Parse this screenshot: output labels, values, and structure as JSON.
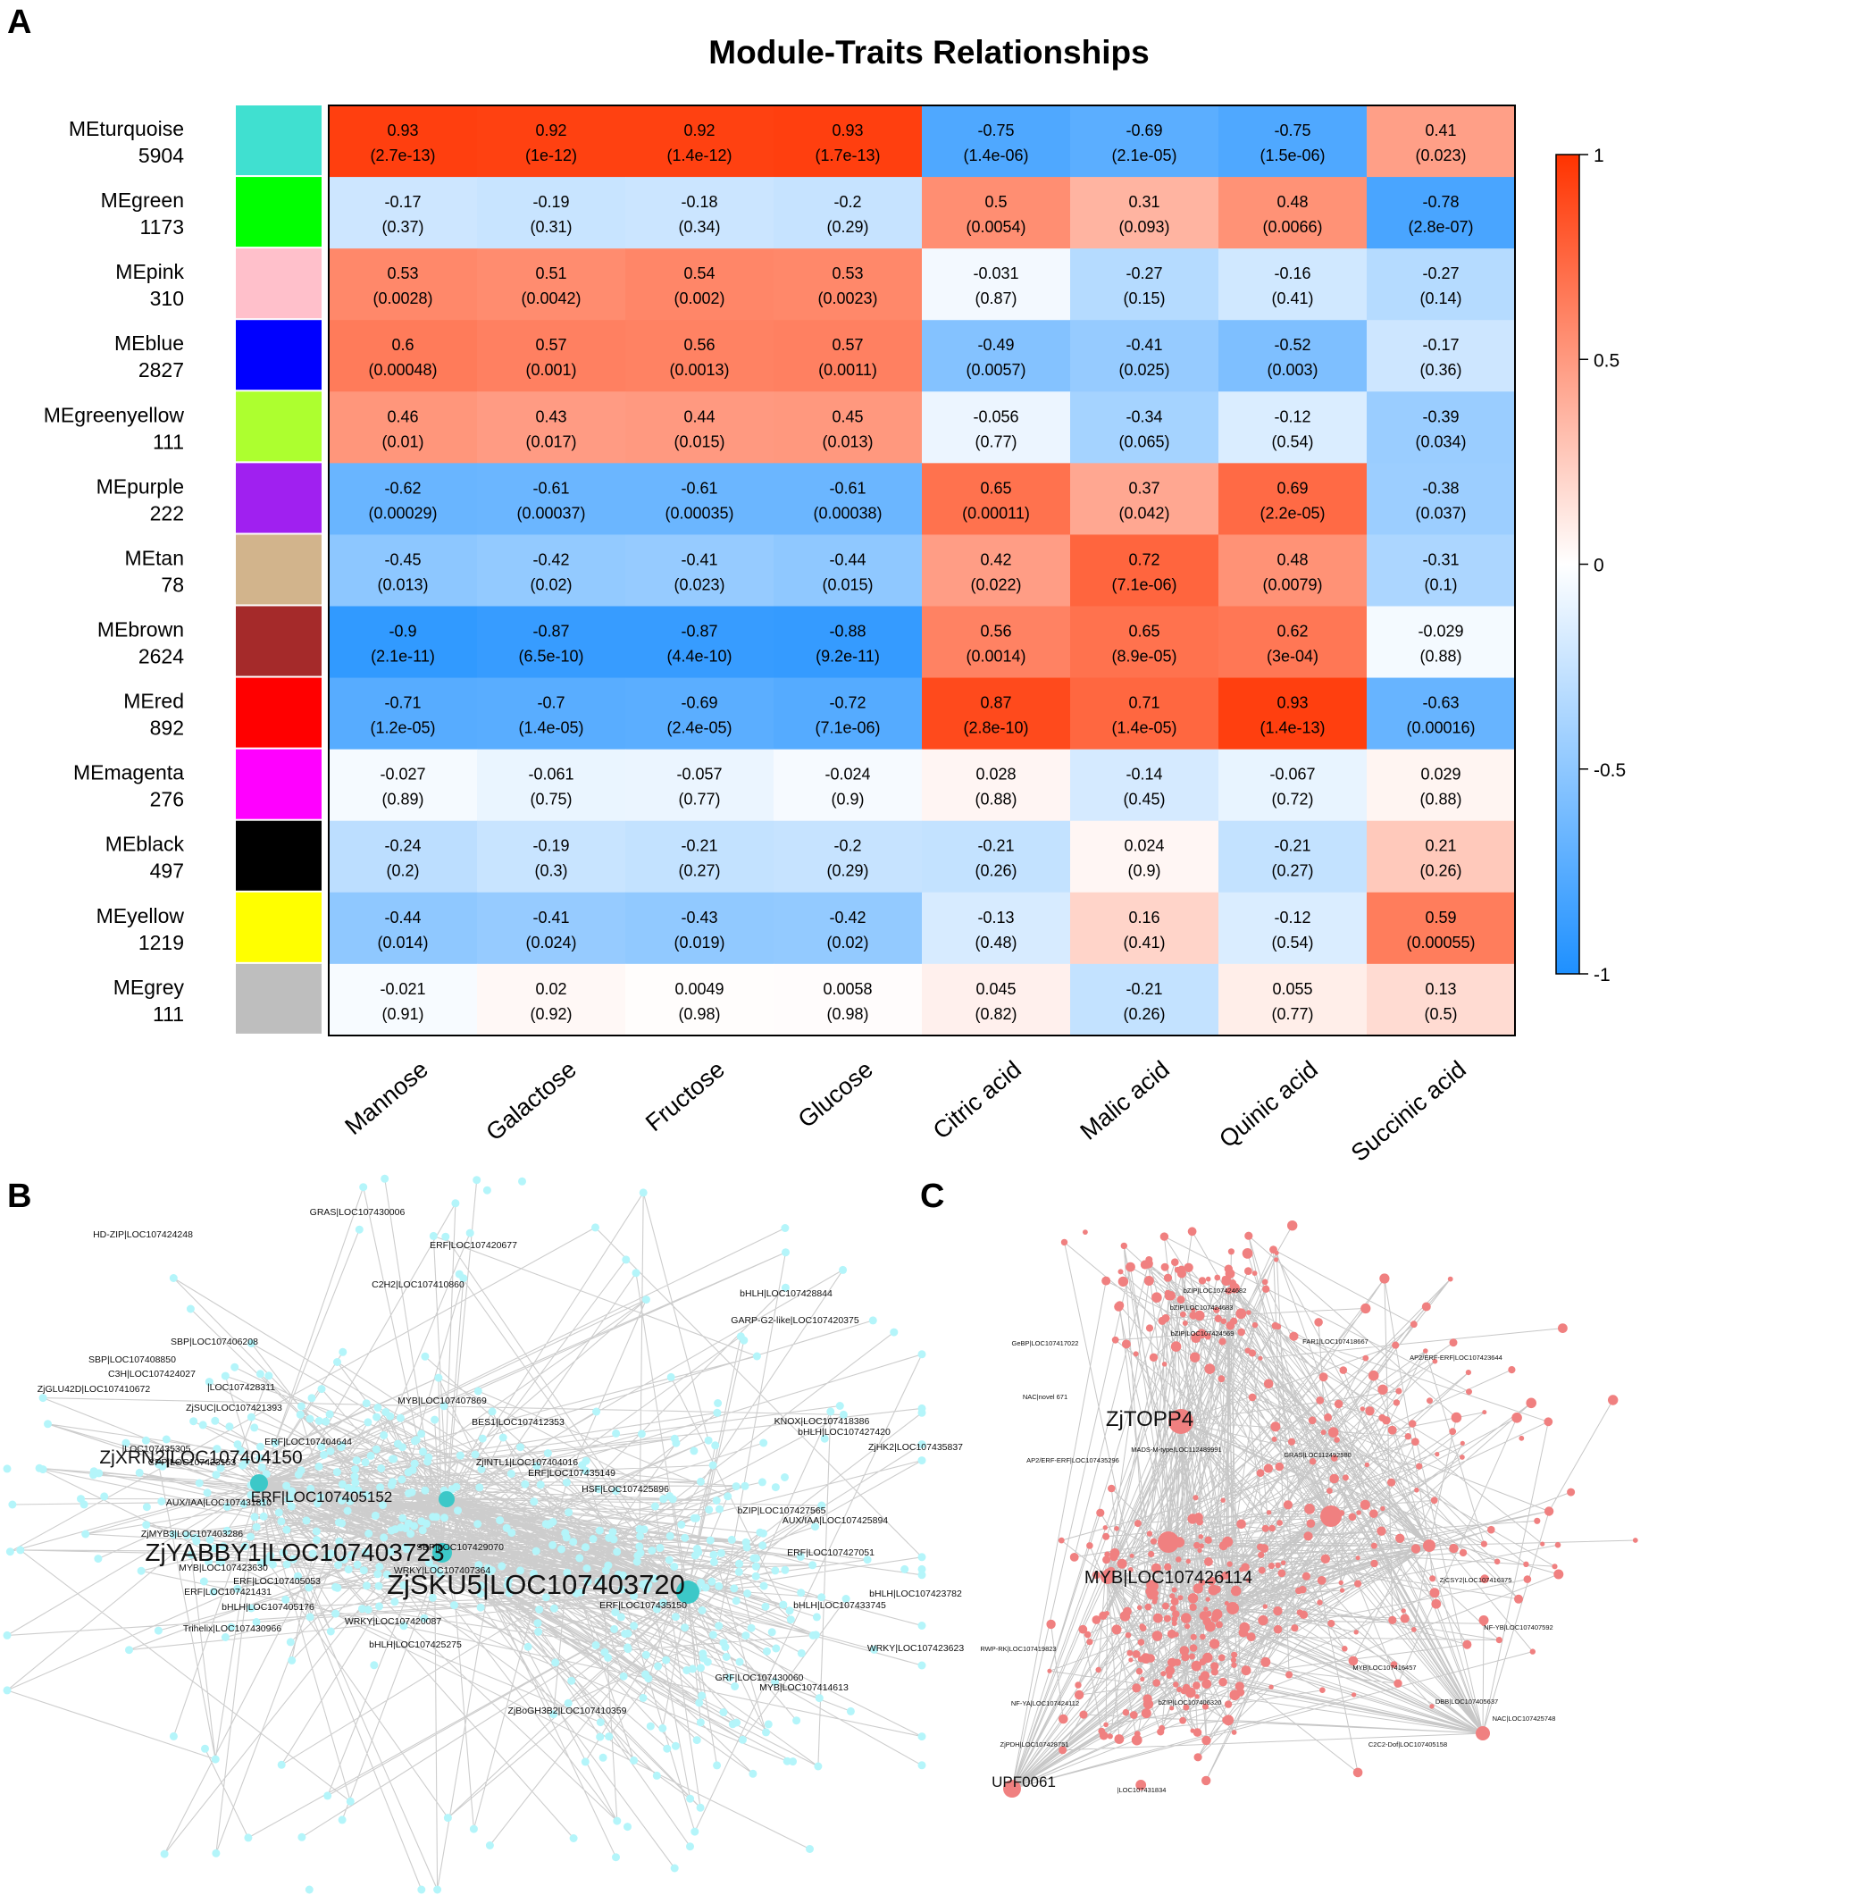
{
  "panels": {
    "a": "A",
    "b": "B",
    "c": "C"
  },
  "chart_data": {
    "type": "heatmap",
    "title": "Module-Traits Relationships",
    "columns": [
      "Mannose",
      "Galactose",
      "Fructose",
      "Glucose",
      "Citric acid",
      "Malic acid",
      "Quinic acid",
      "Succinic acid"
    ],
    "rows": [
      {
        "name": "MEturquoise",
        "count": "5904",
        "color": "#40E0D0",
        "r": [
          "0.93",
          "0.92",
          "0.92",
          "0.93",
          "-0.75",
          "-0.69",
          "-0.75",
          "0.41"
        ],
        "p": [
          "(2.7e-13)",
          "(1e-12)",
          "(1.4e-12)",
          "(1.7e-13)",
          "(1.4e-06)",
          "(2.1e-05)",
          "(1.5e-06)",
          "(0.023)"
        ]
      },
      {
        "name": "MEgreen",
        "count": "1173",
        "color": "#00FF00",
        "r": [
          "-0.17",
          "-0.19",
          "-0.18",
          "-0.2",
          "0.5",
          "0.31",
          "0.48",
          "-0.78"
        ],
        "p": [
          "(0.37)",
          "(0.31)",
          "(0.34)",
          "(0.29)",
          "(0.0054)",
          "(0.093)",
          "(0.0066)",
          "(2.8e-07)"
        ]
      },
      {
        "name": "MEpink",
        "count": "310",
        "color": "#FFC0CB",
        "r": [
          "0.53",
          "0.51",
          "0.54",
          "0.53",
          "-0.031",
          "-0.27",
          "-0.16",
          "-0.27"
        ],
        "p": [
          "(0.0028)",
          "(0.0042)",
          "(0.002)",
          "(0.0023)",
          "(0.87)",
          "(0.15)",
          "(0.41)",
          "(0.14)"
        ]
      },
      {
        "name": "MEblue",
        "count": "2827",
        "color": "#0000FF",
        "r": [
          "0.6",
          "0.57",
          "0.56",
          "0.57",
          "-0.49",
          "-0.41",
          "-0.52",
          "-0.17"
        ],
        "p": [
          "(0.00048)",
          "(0.001)",
          "(0.0013)",
          "(0.0011)",
          "(0.0057)",
          "(0.025)",
          "(0.003)",
          "(0.36)"
        ]
      },
      {
        "name": "MEgreenyellow",
        "count": "111",
        "color": "#ADFF2F",
        "r": [
          "0.46",
          "0.43",
          "0.44",
          "0.45",
          "-0.056",
          "-0.34",
          "-0.12",
          "-0.39"
        ],
        "p": [
          "(0.01)",
          "(0.017)",
          "(0.015)",
          "(0.013)",
          "(0.77)",
          "(0.065)",
          "(0.54)",
          "(0.034)"
        ]
      },
      {
        "name": "MEpurple",
        "count": "222",
        "color": "#A020F0",
        "r": [
          "-0.62",
          "-0.61",
          "-0.61",
          "-0.61",
          "0.65",
          "0.37",
          "0.69",
          "-0.38"
        ],
        "p": [
          "(0.00029)",
          "(0.00037)",
          "(0.00035)",
          "(0.00038)",
          "(0.00011)",
          "(0.042)",
          "(2.2e-05)",
          "(0.037)"
        ]
      },
      {
        "name": "MEtan",
        "count": "78",
        "color": "#D2B48C",
        "r": [
          "-0.45",
          "-0.42",
          "-0.41",
          "-0.44",
          "0.42",
          "0.72",
          "0.48",
          "-0.31"
        ],
        "p": [
          "(0.013)",
          "(0.02)",
          "(0.023)",
          "(0.015)",
          "(0.022)",
          "(7.1e-06)",
          "(0.0079)",
          "(0.1)"
        ]
      },
      {
        "name": "MEbrown",
        "count": "2624",
        "color": "#A52A2A",
        "r": [
          "-0.9",
          "-0.87",
          "-0.87",
          "-0.88",
          "0.56",
          "0.65",
          "0.62",
          "-0.029"
        ],
        "p": [
          "(2.1e-11)",
          "(6.5e-10)",
          "(4.4e-10)",
          "(9.2e-11)",
          "(0.0014)",
          "(8.9e-05)",
          "(3e-04)",
          "(0.88)"
        ]
      },
      {
        "name": "MEred",
        "count": "892",
        "color": "#FF0000",
        "r": [
          "-0.71",
          "-0.7",
          "-0.69",
          "-0.72",
          "0.87",
          "0.71",
          "0.93",
          "-0.63"
        ],
        "p": [
          "(1.2e-05)",
          "(1.4e-05)",
          "(2.4e-05)",
          "(7.1e-06)",
          "(2.8e-10)",
          "(1.4e-05)",
          "(1.4e-13)",
          "(0.00016)"
        ]
      },
      {
        "name": "MEmagenta",
        "count": "276",
        "color": "#FF00FF",
        "r": [
          "-0.027",
          "-0.061",
          "-0.057",
          "-0.024",
          "0.028",
          "-0.14",
          "-0.067",
          "0.029"
        ],
        "p": [
          "(0.89)",
          "(0.75)",
          "(0.77)",
          "(0.9)",
          "(0.88)",
          "(0.45)",
          "(0.72)",
          "(0.88)"
        ]
      },
      {
        "name": "MEblack",
        "count": "497",
        "color": "#000000",
        "r": [
          "-0.24",
          "-0.19",
          "-0.21",
          "-0.2",
          "-0.21",
          "0.024",
          "-0.21",
          "0.21"
        ],
        "p": [
          "(0.2)",
          "(0.3)",
          "(0.27)",
          "(0.29)",
          "(0.26)",
          "(0.9)",
          "(0.27)",
          "(0.26)"
        ]
      },
      {
        "name": "MEyellow",
        "count": "1219",
        "color": "#FFFF00",
        "r": [
          "-0.44",
          "-0.41",
          "-0.43",
          "-0.42",
          "-0.13",
          "0.16",
          "-0.12",
          "0.59"
        ],
        "p": [
          "(0.014)",
          "(0.024)",
          "(0.019)",
          "(0.02)",
          "(0.48)",
          "(0.41)",
          "(0.54)",
          "(0.00055)"
        ]
      },
      {
        "name": "MEgrey",
        "count": "111",
        "color": "#BEBEBE",
        "r": [
          "-0.021",
          "0.02",
          "0.0049",
          "0.0058",
          "0.045",
          "-0.21",
          "0.055",
          "0.13"
        ],
        "p": [
          "(0.91)",
          "(0.92)",
          "(0.98)",
          "(0.98)",
          "(0.82)",
          "(0.26)",
          "(0.77)",
          "(0.5)"
        ]
      }
    ],
    "colorbar": {
      "range": [
        -1,
        1
      ],
      "ticks": [
        "1",
        "0.5",
        "0",
        "-0.5",
        "-1"
      ],
      "low_color": "#1E90FF",
      "mid_color": "#FFFFFF",
      "high_color": "#FF3300"
    }
  },
  "network_b": {
    "node_color": "#B4F5FA",
    "hub_color": "#3CC8C8",
    "edge_color": "#C4C4C4",
    "hubs": [
      "ZjSKU5|LOC107403720",
      "ZjYABBY1|LOC107403723",
      "ZjXRN2|LOC107404150",
      "ERF|LOC107405152"
    ],
    "labels": [
      "GRAS|LOC107430006",
      "HD-ZIP|LOC107424248",
      "ERF|LOC107420677",
      "C2H2|LOC107410860",
      "bHLH|LOC107428844",
      "GARP-G2-like|LOC107420375",
      "SBP|LOC107406208",
      "SBP|LOC107408850",
      "C3H|LOC107424027",
      "|LOC107428311",
      "ZjGLU42D|LOC107410672",
      "ZjSUC|LOC107421393",
      "MYB|LOC107407869",
      "BES1|LOC107412353",
      "KNOX|LOC107418386",
      "bHLH|LOC107427420",
      "ERF|LOC107404644",
      "|LOC107435305",
      "ZjHK2|LOC107435837",
      "CPP|LOC107423153",
      "ZjINTL1|LOC107404016",
      "ERF|LOC107435149",
      "HSF|LOC107425896",
      "AUX/IAA|LOC107431810",
      "bZIP|LOC107427565",
      "AUX/IAA|LOC107425894",
      "ZjMYB3|LOC107403286",
      "SBP|LOC107429070",
      "ERF|LOC107427051",
      "MYB|LOC107423630",
      "WRKY|LOC107407364",
      "ERF|LOC107405053",
      "bHLH|LOC107423782",
      "ERF|LOC107421431",
      "bHLH|LOC107405176",
      "ERF|LOC107435150",
      "bHLH|LOC107433745",
      "WRKY|LOC107420087",
      "Trihelix|LOC107430966",
      "bHLH|LOC107425275",
      "WRKY|LOC107423623",
      "GRF|LOC107430060",
      "MYB|LOC107414613",
      "ZjBoGH3B2|LOC107410359"
    ]
  },
  "network_c": {
    "node_color": "#F08080",
    "edge_color": "#BDBDBD",
    "hubs": [
      "ZjTOPP4",
      "MYB|LOC107426114",
      "UPF0061"
    ],
    "labels": [
      "bZIP|LOC107424682",
      "bZIP|LOC107424683",
      "bZIP|LOC107424569",
      "FAR1|LOC107418667",
      "GeBP|LOC107417022",
      "AP2/ERF-ERF|LOC107423644",
      "NAC|novel 671",
      "MADS-M-type|LOC112489991",
      "GRAS|LOC112492580",
      "AP2/ERF-ERF|LOC107435296",
      "ZjCSY2|LOC107416375",
      "RWP-RK|LOC107419823",
      "NF-YB|LOC107407592",
      "MYB|LOC107416457",
      "NF-YA|LOC107424112",
      "bZIP|LOC107406320",
      "DBB|LOC107405637",
      "NAC|LOC107425748",
      "ZjPDH|LOC107428751",
      "C2C2-Dof|LOC107405158",
      "|LOC107431834"
    ]
  }
}
